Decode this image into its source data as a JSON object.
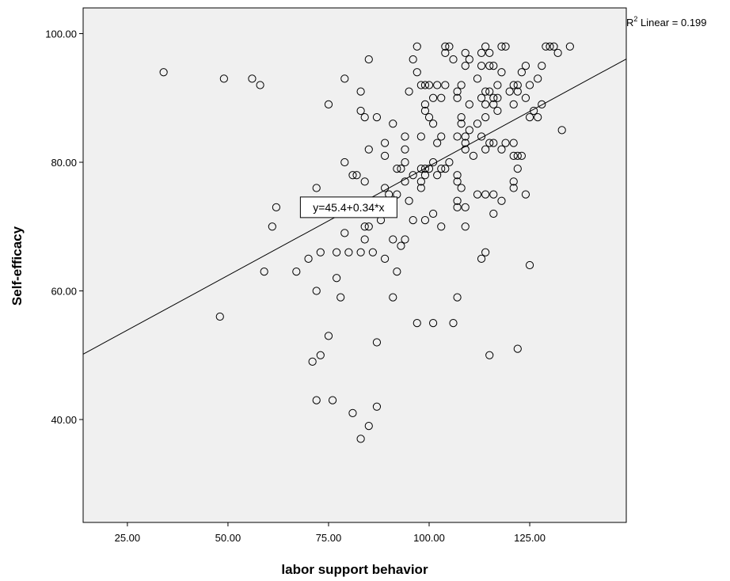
{
  "chart_data": {
    "type": "scatter",
    "xlabel": "labor support behavior",
    "ylabel": "Self-efficacy",
    "xlim": [
      14,
      149
    ],
    "ylim": [
      24,
      104
    ],
    "xticks": [
      25,
      50,
      75,
      100,
      125
    ],
    "yticks": [
      40,
      60,
      80,
      100
    ],
    "xtick_labels": [
      "25.00",
      "50.00",
      "75.00",
      "100.00",
      "125.00"
    ],
    "ytick_labels": [
      "40.00",
      "60.00",
      "80.00",
      "100.00"
    ],
    "grid": false,
    "background_color": "#f0f0f0",
    "marker": "open-circle",
    "fit_line": {
      "intercept": 45.4,
      "slope": 0.34,
      "equation_label": "y=45.4+0.34*x",
      "label_x": 80,
      "label_y": 73
    },
    "r2_label": {
      "prefix": "R",
      "sup": "2",
      "text": " Linear = 0.199"
    },
    "points": [
      [
        34,
        94
      ],
      [
        49,
        93
      ],
      [
        56,
        93
      ],
      [
        58,
        92
      ],
      [
        48,
        56
      ],
      [
        59,
        63
      ],
      [
        61,
        70
      ],
      [
        62,
        73
      ],
      [
        67,
        63
      ],
      [
        70,
        65
      ],
      [
        71,
        49
      ],
      [
        72,
        43
      ],
      [
        72,
        60
      ],
      [
        72,
        76
      ],
      [
        73,
        50
      ],
      [
        73,
        66
      ],
      [
        75,
        89
      ],
      [
        75,
        53
      ],
      [
        76,
        43
      ],
      [
        77,
        62
      ],
      [
        77,
        66
      ],
      [
        78,
        59
      ],
      [
        79,
        93
      ],
      [
        79,
        80
      ],
      [
        79,
        69
      ],
      [
        80,
        66
      ],
      [
        81,
        78
      ],
      [
        81,
        41
      ],
      [
        82,
        78
      ],
      [
        83,
        91
      ],
      [
        83,
        88
      ],
      [
        83,
        66
      ],
      [
        83,
        37
      ],
      [
        84,
        87
      ],
      [
        84,
        77
      ],
      [
        84,
        70
      ],
      [
        84,
        68
      ],
      [
        85,
        96
      ],
      [
        85,
        82
      ],
      [
        85,
        70
      ],
      [
        85,
        39
      ],
      [
        86,
        66
      ],
      [
        87,
        87
      ],
      [
        87,
        52
      ],
      [
        87,
        42
      ],
      [
        88,
        74
      ],
      [
        88,
        71
      ],
      [
        89,
        83
      ],
      [
        89,
        81
      ],
      [
        89,
        76
      ],
      [
        89,
        65
      ],
      [
        90,
        75
      ],
      [
        91,
        86
      ],
      [
        91,
        68
      ],
      [
        91,
        59
      ],
      [
        92,
        79
      ],
      [
        92,
        75
      ],
      [
        92,
        63
      ],
      [
        93,
        79
      ],
      [
        93,
        67
      ],
      [
        94,
        84
      ],
      [
        94,
        82
      ],
      [
        94,
        80
      ],
      [
        94,
        77
      ],
      [
        94,
        68
      ],
      [
        95,
        91
      ],
      [
        95,
        74
      ],
      [
        96,
        96
      ],
      [
        96,
        78
      ],
      [
        96,
        71
      ],
      [
        97,
        98
      ],
      [
        97,
        94
      ],
      [
        97,
        55
      ],
      [
        98,
        92
      ],
      [
        98,
        84
      ],
      [
        98,
        79
      ],
      [
        98,
        77
      ],
      [
        98,
        76
      ],
      [
        99,
        92
      ],
      [
        99,
        89
      ],
      [
        99,
        88
      ],
      [
        99,
        79
      ],
      [
        99,
        78
      ],
      [
        99,
        71
      ],
      [
        100,
        92
      ],
      [
        100,
        87
      ],
      [
        100,
        79
      ],
      [
        101,
        90
      ],
      [
        101,
        86
      ],
      [
        101,
        80
      ],
      [
        101,
        72
      ],
      [
        101,
        55
      ],
      [
        102,
        92
      ],
      [
        102,
        83
      ],
      [
        102,
        78
      ],
      [
        103,
        90
      ],
      [
        103,
        84
      ],
      [
        103,
        79
      ],
      [
        103,
        70
      ],
      [
        104,
        98
      ],
      [
        104,
        97
      ],
      [
        104,
        92
      ],
      [
        104,
        79
      ],
      [
        105,
        98
      ],
      [
        105,
        80
      ],
      [
        106,
        96
      ],
      [
        106,
        55
      ],
      [
        107,
        91
      ],
      [
        107,
        90
      ],
      [
        107,
        84
      ],
      [
        107,
        78
      ],
      [
        107,
        77
      ],
      [
        107,
        74
      ],
      [
        107,
        73
      ],
      [
        107,
        59
      ],
      [
        108,
        92
      ],
      [
        108,
        87
      ],
      [
        108,
        86
      ],
      [
        108,
        76
      ],
      [
        109,
        97
      ],
      [
        109,
        95
      ],
      [
        109,
        84
      ],
      [
        109,
        83
      ],
      [
        109,
        82
      ],
      [
        109,
        73
      ],
      [
        109,
        70
      ],
      [
        110,
        96
      ],
      [
        110,
        89
      ],
      [
        110,
        85
      ],
      [
        111,
        81
      ],
      [
        112,
        93
      ],
      [
        112,
        86
      ],
      [
        112,
        75
      ],
      [
        113,
        97
      ],
      [
        113,
        95
      ],
      [
        113,
        90
      ],
      [
        113,
        84
      ],
      [
        113,
        65
      ],
      [
        114,
        98
      ],
      [
        114,
        91
      ],
      [
        114,
        89
      ],
      [
        114,
        87
      ],
      [
        114,
        82
      ],
      [
        114,
        75
      ],
      [
        114,
        66
      ],
      [
        115,
        97
      ],
      [
        115,
        95
      ],
      [
        115,
        91
      ],
      [
        115,
        83
      ],
      [
        115,
        50
      ],
      [
        116,
        95
      ],
      [
        116,
        90
      ],
      [
        116,
        89
      ],
      [
        116,
        83
      ],
      [
        116,
        75
      ],
      [
        116,
        72
      ],
      [
        117,
        92
      ],
      [
        117,
        90
      ],
      [
        117,
        88
      ],
      [
        118,
        98
      ],
      [
        118,
        94
      ],
      [
        118,
        82
      ],
      [
        118,
        74
      ],
      [
        119,
        98
      ],
      [
        119,
        83
      ],
      [
        120,
        91
      ],
      [
        121,
        92
      ],
      [
        121,
        89
      ],
      [
        121,
        83
      ],
      [
        121,
        81
      ],
      [
        121,
        77
      ],
      [
        121,
        76
      ],
      [
        122,
        92
      ],
      [
        122,
        91
      ],
      [
        122,
        81
      ],
      [
        122,
        79
      ],
      [
        122,
        51
      ],
      [
        123,
        94
      ],
      [
        123,
        81
      ],
      [
        124,
        95
      ],
      [
        124,
        90
      ],
      [
        124,
        75
      ],
      [
        125,
        92
      ],
      [
        125,
        87
      ],
      [
        125,
        64
      ],
      [
        126,
        88
      ],
      [
        127,
        93
      ],
      [
        127,
        87
      ],
      [
        128,
        95
      ],
      [
        128,
        89
      ],
      [
        129,
        98
      ],
      [
        130,
        98
      ],
      [
        131,
        98
      ],
      [
        132,
        97
      ],
      [
        133,
        85
      ],
      [
        135,
        98
      ]
    ]
  }
}
